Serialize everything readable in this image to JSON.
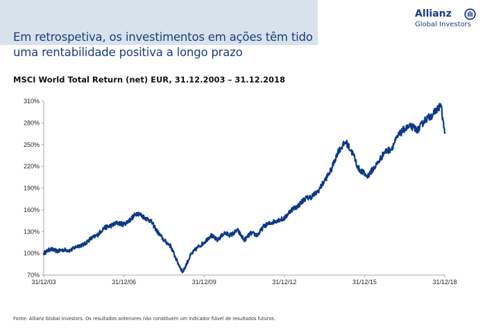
{
  "header": {
    "title_line1": "Em retrospetiva, os investimentos em ações têm tido",
    "title_line2": "uma rentabilidade positiva a longo prazo",
    "band_color": "#d8e2ec",
    "text_color": "#1a3d7c"
  },
  "logo": {
    "name": "Allianz",
    "subtitle": "Global Investors",
    "icon": "allianz-eagle-icon"
  },
  "footer": {
    "source": "Fonte: Allianz Global Investors. Os resultados anteriores não constituem um indicador fiável de resultados futuros."
  },
  "chart_data": {
    "type": "line",
    "title": "MSCI World Total Return (net) EUR, 31.12.2003 – 31.12.2018",
    "xlabel": "",
    "ylabel": "",
    "xlim": [
      2004.0,
      2019.0
    ],
    "ylim": [
      70,
      310
    ],
    "grid": false,
    "line_color": "#0d3a85",
    "yticks": [
      {
        "value": 310,
        "label": "310%"
      },
      {
        "value": 280,
        "label": "280%"
      },
      {
        "value": 250,
        "label": "250%"
      },
      {
        "value": 220,
        "label": "220%"
      },
      {
        "value": 190,
        "label": "190%"
      },
      {
        "value": 160,
        "label": "160%"
      },
      {
        "value": 130,
        "label": "130%"
      },
      {
        "value": 100,
        "label": "100%"
      },
      {
        "value": 70,
        "label": "70%"
      }
    ],
    "xticks": [
      {
        "value": 2004.0,
        "label": "31/12/03"
      },
      {
        "value": 2007.0,
        "label": "31/12/06"
      },
      {
        "value": 2010.0,
        "label": "31/12/09"
      },
      {
        "value": 2013.0,
        "label": "31/12/12"
      },
      {
        "value": 2016.0,
        "label": "31/12/15"
      },
      {
        "value": 2019.0,
        "label": "31/12/18"
      }
    ],
    "series": [
      {
        "name": "MSCI World Total Return (net) EUR",
        "x": [
          2004.0,
          2004.25,
          2004.5,
          2004.75,
          2005.0,
          2005.25,
          2005.5,
          2005.75,
          2006.0,
          2006.25,
          2006.5,
          2006.75,
          2007.0,
          2007.25,
          2007.5,
          2007.75,
          2008.0,
          2008.25,
          2008.5,
          2008.75,
          2009.0,
          2009.2,
          2009.5,
          2009.75,
          2010.0,
          2010.25,
          2010.5,
          2010.75,
          2011.0,
          2011.25,
          2011.5,
          2011.75,
          2012.0,
          2012.25,
          2012.5,
          2012.75,
          2013.0,
          2013.25,
          2013.5,
          2013.75,
          2014.0,
          2014.25,
          2014.5,
          2014.75,
          2015.0,
          2015.3,
          2015.6,
          2015.75,
          2016.1,
          2016.5,
          2016.75,
          2017.0,
          2017.25,
          2017.5,
          2017.75,
          2018.0,
          2018.25,
          2018.5,
          2018.75,
          2018.85,
          2019.0
        ],
        "y": [
          100,
          106,
          103,
          105,
          104,
          110,
          112,
          120,
          125,
          135,
          138,
          142,
          140,
          147,
          156,
          150,
          145,
          130,
          118,
          110,
          88,
          74,
          98,
          108,
          115,
          125,
          118,
          128,
          125,
          132,
          118,
          128,
          125,
          138,
          142,
          146,
          148,
          160,
          165,
          175,
          178,
          185,
          200,
          215,
          240,
          254,
          235,
          218,
          206,
          225,
          240,
          244,
          262,
          272,
          275,
          270,
          284,
          290,
          300,
          306,
          265
        ]
      }
    ]
  }
}
